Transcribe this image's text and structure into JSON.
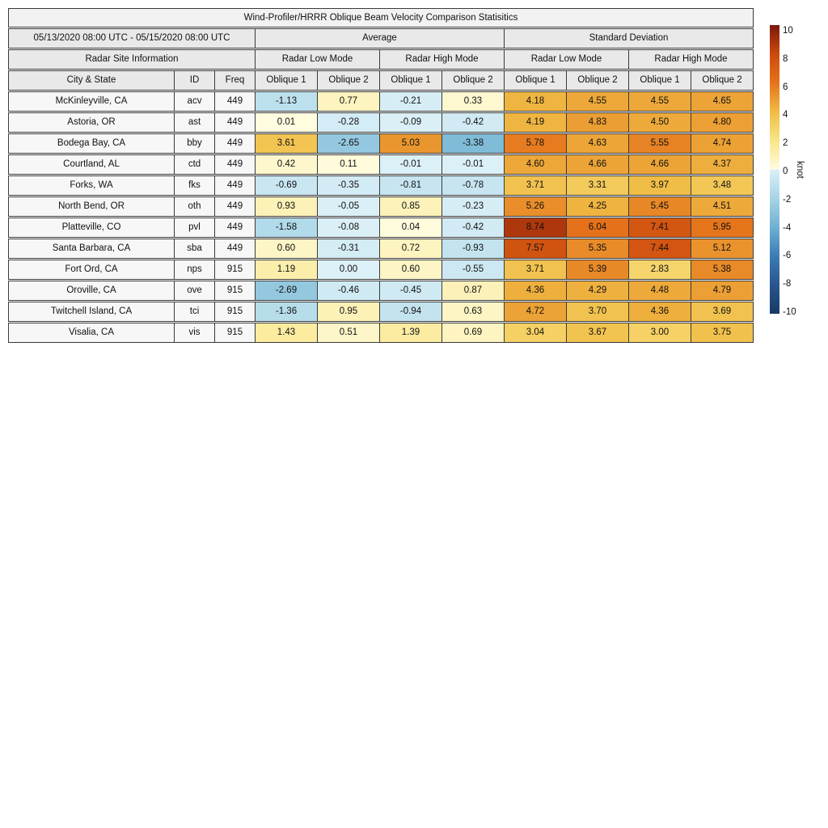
{
  "title": "Wind-Profiler/HRRR Oblique Beam Velocity Comparison Statisitics",
  "header": {
    "date_range": "05/13/2020 08:00 UTC - 05/15/2020 08:00 UTC",
    "group_average": "Average",
    "group_std": "Standard Deviation",
    "site_info": "Radar Site Information",
    "low_mode": "Radar Low Mode",
    "high_mode": "Radar High Mode",
    "col_city": "City & State",
    "col_id": "ID",
    "col_freq": "Freq",
    "oblique1": "Oblique 1",
    "oblique2": "Oblique 2"
  },
  "colorbar": {
    "label": "knot",
    "min": -10,
    "max": 10,
    "ticks": [
      10,
      8,
      6,
      4,
      2,
      0,
      -2,
      -4,
      -6,
      -8,
      -10
    ],
    "colormap": {
      "positive": [
        {
          "v": 0,
          "c": "#fffce0"
        },
        {
          "v": 2,
          "c": "#f9e587"
        },
        {
          "v": 4,
          "c": "#f0bc45"
        },
        {
          "v": 6,
          "c": "#e5731a"
        },
        {
          "v": 8,
          "c": "#cc4a0d"
        },
        {
          "v": 10,
          "c": "#7c180c"
        }
      ],
      "negative": [
        {
          "v": 0,
          "c": "#dcf0f7"
        },
        {
          "v": -2,
          "c": "#a6d4e6"
        },
        {
          "v": -4,
          "c": "#6fb0d2"
        },
        {
          "v": -6,
          "c": "#3d7cb5"
        },
        {
          "v": -8,
          "c": "#28568e"
        },
        {
          "v": -10,
          "c": "#173a63"
        }
      ]
    }
  },
  "chart_data": {
    "type": "table",
    "title": "Wind-Profiler/HRRR Oblique Beam Velocity Comparison Statisitics",
    "period": "05/13/2020 08:00 UTC - 05/15/2020 08:00 UTC",
    "colorbar_label": "knot",
    "colorbar_range": [
      -10,
      10
    ],
    "value_columns": [
      "Average Radar Low Mode Oblique 1",
      "Average Radar Low Mode Oblique 2",
      "Average Radar High Mode Oblique 1",
      "Average Radar High Mode Oblique 2",
      "Standard Deviation Radar Low Mode Oblique 1",
      "Standard Deviation Radar Low Mode Oblique 2",
      "Standard Deviation Radar High Mode Oblique 1",
      "Standard Deviation Radar High Mode Oblique 2"
    ],
    "rows": [
      {
        "city": "McKinleyville, CA",
        "id": "acv",
        "freq": 449,
        "values": [
          -1.13,
          0.77,
          -0.21,
          0.33,
          4.18,
          4.55,
          4.55,
          4.65
        ]
      },
      {
        "city": "Astoria, OR",
        "id": "ast",
        "freq": 449,
        "values": [
          0.01,
          -0.28,
          -0.09,
          -0.42,
          4.19,
          4.83,
          4.5,
          4.8
        ]
      },
      {
        "city": "Bodega Bay, CA",
        "id": "bby",
        "freq": 449,
        "values": [
          3.61,
          -2.65,
          5.03,
          -3.38,
          5.78,
          4.63,
          5.55,
          4.74
        ]
      },
      {
        "city": "Courtland, AL",
        "id": "ctd",
        "freq": 449,
        "values": [
          0.42,
          0.11,
          -0.01,
          -0.01,
          4.6,
          4.66,
          4.66,
          4.37
        ]
      },
      {
        "city": "Forks, WA",
        "id": "fks",
        "freq": 449,
        "values": [
          -0.69,
          -0.35,
          -0.81,
          -0.78,
          3.71,
          3.31,
          3.97,
          3.48
        ]
      },
      {
        "city": "North Bend, OR",
        "id": "oth",
        "freq": 449,
        "values": [
          0.93,
          -0.05,
          0.85,
          -0.23,
          5.26,
          4.25,
          5.45,
          4.51
        ]
      },
      {
        "city": "Platteville, CO",
        "id": "pvl",
        "freq": 449,
        "values": [
          -1.58,
          -0.08,
          0.04,
          -0.42,
          8.74,
          6.04,
          7.41,
          5.95
        ]
      },
      {
        "city": "Santa Barbara, CA",
        "id": "sba",
        "freq": 449,
        "values": [
          0.6,
          -0.31,
          0.72,
          -0.93,
          7.57,
          5.35,
          7.44,
          5.12
        ]
      },
      {
        "city": "Fort Ord, CA",
        "id": "nps",
        "freq": 915,
        "values": [
          1.19,
          0.0,
          0.6,
          -0.55,
          3.71,
          5.39,
          2.83,
          5.38
        ]
      },
      {
        "city": "Oroville, CA",
        "id": "ove",
        "freq": 915,
        "values": [
          -2.69,
          -0.46,
          -0.45,
          0.87,
          4.36,
          4.29,
          4.48,
          4.79
        ]
      },
      {
        "city": "Twitchell Island, CA",
        "id": "tci",
        "freq": 915,
        "values": [
          -1.36,
          0.95,
          -0.94,
          0.63,
          4.72,
          3.7,
          4.36,
          3.69
        ]
      },
      {
        "city": "Visalia, CA",
        "id": "vis",
        "freq": 915,
        "values": [
          1.43,
          0.51,
          1.39,
          0.69,
          3.04,
          3.67,
          3.0,
          3.75
        ]
      }
    ]
  }
}
